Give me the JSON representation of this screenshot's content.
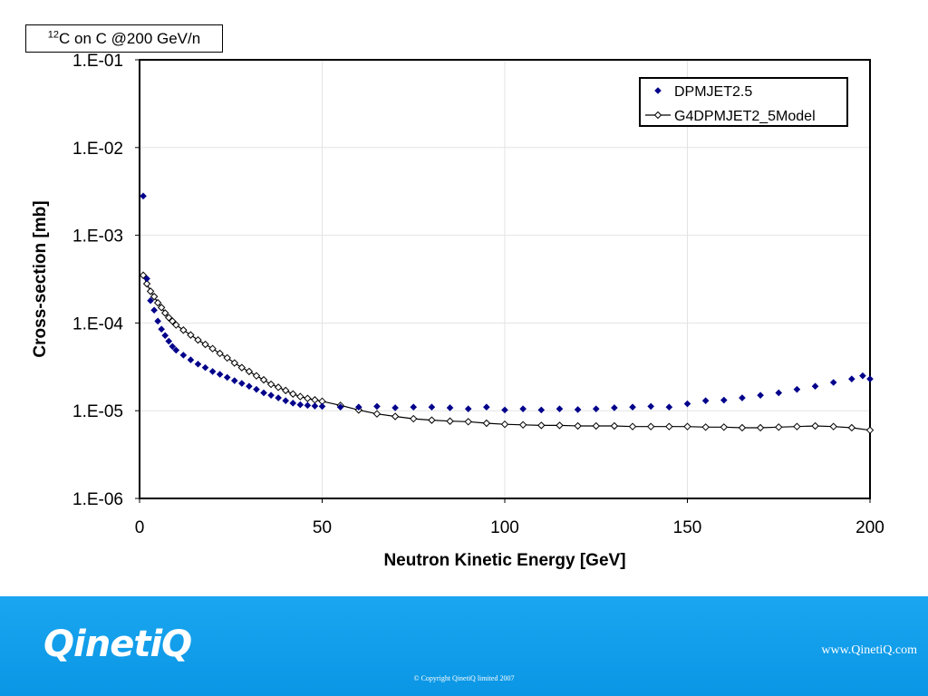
{
  "header": {
    "title_sup": "12",
    "title_rest": "C on C @200 GeV/n"
  },
  "footer": {
    "logo": "QinetiQ",
    "url": "www.QinetiQ.com",
    "copyright": "© Copyright QinetiQ limited 2007"
  },
  "colors": {
    "footer_blue": "#1aa6f0",
    "series1": "#00008b",
    "series2": "#000000"
  },
  "chart_data": {
    "type": "scatter",
    "title": "",
    "xlabel": "Neutron Kinetic Energy [GeV]",
    "ylabel": "Cross-section [mb]",
    "xlim": [
      0,
      200
    ],
    "ylim": [
      1e-06,
      0.1
    ],
    "y_scale": "log",
    "x_ticks": [
      "0",
      "50",
      "100",
      "150",
      "200"
    ],
    "y_ticks": [
      "1.E-06",
      "1.E-05",
      "1.E-04",
      "1.E-03",
      "1.E-02",
      "1.E-01"
    ],
    "grid": true,
    "legend_position": "top-right",
    "series": [
      {
        "name": "DPMJET2.5",
        "marker": "filled-diamond",
        "x": [
          1,
          2,
          3,
          4,
          5,
          6,
          7,
          8,
          9,
          10,
          12,
          14,
          16,
          18,
          20,
          22,
          24,
          26,
          28,
          30,
          32,
          34,
          36,
          38,
          40,
          42,
          44,
          46,
          48,
          50,
          55,
          60,
          65,
          70,
          75,
          80,
          85,
          90,
          95,
          100,
          105,
          110,
          115,
          120,
          125,
          130,
          135,
          140,
          145,
          150,
          155,
          160,
          165,
          170,
          175,
          180,
          185,
          190,
          195,
          198,
          200
        ],
        "y": [
          0.0028,
          0.00032,
          0.00018,
          0.00014,
          0.000105,
          8.5e-05,
          7.2e-05,
          6.2e-05,
          5.4e-05,
          4.9e-05,
          4.3e-05,
          3.8e-05,
          3.4e-05,
          3.1e-05,
          2.8e-05,
          2.6e-05,
          2.4e-05,
          2.2e-05,
          2.05e-05,
          1.9e-05,
          1.75e-05,
          1.6e-05,
          1.5e-05,
          1.4e-05,
          1.3e-05,
          1.22e-05,
          1.17e-05,
          1.15e-05,
          1.13e-05,
          1.12e-05,
          1.1e-05,
          1.1e-05,
          1.12e-05,
          1.08e-05,
          1.1e-05,
          1.1e-05,
          1.08e-05,
          1.05e-05,
          1.1e-05,
          1.02e-05,
          1.05e-05,
          1.02e-05,
          1.05e-05,
          1.03e-05,
          1.05e-05,
          1.08e-05,
          1.1e-05,
          1.12e-05,
          1.1e-05,
          1.2e-05,
          1.3e-05,
          1.32e-05,
          1.4e-05,
          1.5e-05,
          1.6e-05,
          1.75e-05,
          1.9e-05,
          2.1e-05,
          2.3e-05,
          2.5e-05,
          2.3e-05
        ]
      },
      {
        "name": "G4DPMJET2_5Model",
        "marker": "open-diamond-line",
        "x": [
          1,
          2,
          3,
          4,
          5,
          6,
          7,
          8,
          9,
          10,
          12,
          14,
          16,
          18,
          20,
          22,
          24,
          26,
          28,
          30,
          32,
          34,
          36,
          38,
          40,
          42,
          44,
          46,
          48,
          50,
          55,
          60,
          65,
          70,
          75,
          80,
          85,
          90,
          95,
          100,
          105,
          110,
          115,
          120,
          125,
          130,
          135,
          140,
          145,
          150,
          155,
          160,
          165,
          170,
          175,
          180,
          185,
          190,
          195,
          200
        ],
        "y": [
          0.00035,
          0.00028,
          0.00023,
          0.0002,
          0.00017,
          0.00015,
          0.00013,
          0.000115,
          0.000105,
          9.5e-05,
          8.3e-05,
          7.3e-05,
          6.4e-05,
          5.7e-05,
          5.1e-05,
          4.5e-05,
          4e-05,
          3.5e-05,
          3.1e-05,
          2.8e-05,
          2.5e-05,
          2.25e-05,
          2e-05,
          1.85e-05,
          1.7e-05,
          1.55e-05,
          1.45e-05,
          1.38e-05,
          1.33e-05,
          1.28e-05,
          1.15e-05,
          1.02e-05,
          9.2e-06,
          8.6e-06,
          8.1e-06,
          7.8e-06,
          7.6e-06,
          7.5e-06,
          7.2e-06,
          7e-06,
          6.9e-06,
          6.8e-06,
          6.8e-06,
          6.7e-06,
          6.7e-06,
          6.7e-06,
          6.6e-06,
          6.6e-06,
          6.6e-06,
          6.6e-06,
          6.5e-06,
          6.5e-06,
          6.4e-06,
          6.4e-06,
          6.5e-06,
          6.6e-06,
          6.7e-06,
          6.6e-06,
          6.4e-06,
          6e-06
        ]
      }
    ]
  }
}
